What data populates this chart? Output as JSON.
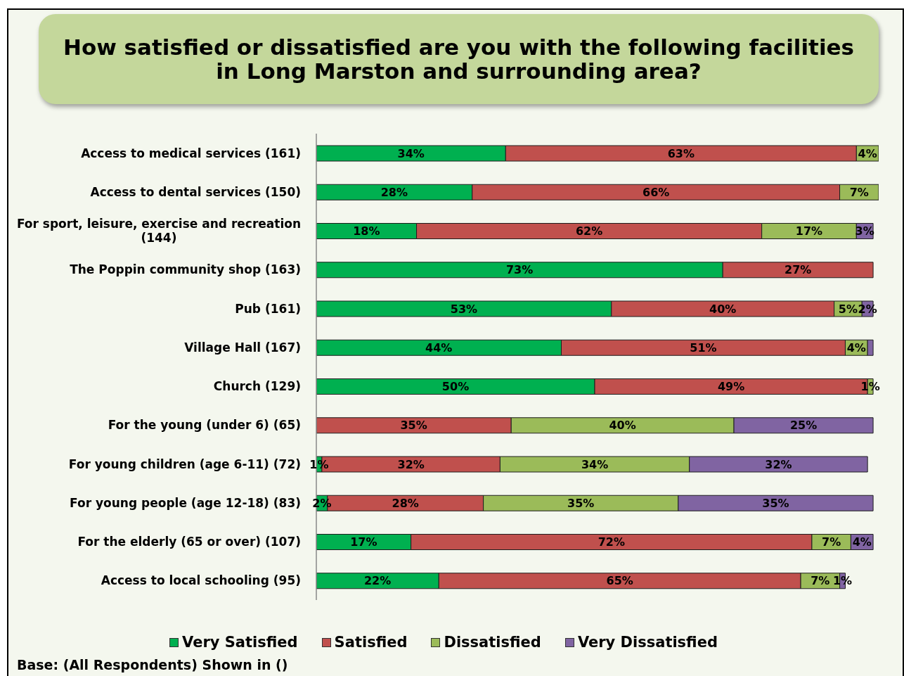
{
  "chart_data": {
    "type": "bar",
    "orientation": "horizontal",
    "stacked": true,
    "title": "How satisfied or dissatisfied are you with the following facilities in Long Marston and surrounding area?",
    "categories": [
      "Access to medical services (161)",
      "Access to dental services (150)",
      "For sport, leisure, exercise and recreation (144)",
      "The Poppin community shop (163)",
      "Pub (161)",
      "Village Hall (167)",
      "Church (129)",
      "For the young (under 6) (65)",
      "For young children (age 6-11) (72)",
      "For young people (age 12-18) (83)",
      "For the elderly (65 or over) (107)",
      "Access to local schooling (95)"
    ],
    "series": [
      {
        "name": "Very Satisfied",
        "color": "#00b050",
        "values": [
          34,
          28,
          18,
          73,
          53,
          44,
          50,
          null,
          1,
          2,
          17,
          22
        ],
        "value_labels": [
          "34%",
          "28%",
          "18%",
          "73%",
          "53%",
          "44%",
          "50%",
          null,
          "1%",
          "2%",
          "17%",
          "22%"
        ]
      },
      {
        "name": "Satisfied",
        "color": "#c0504d",
        "values": [
          63,
          66,
          62,
          27,
          40,
          51,
          49,
          35,
          32,
          28,
          72,
          65
        ],
        "value_labels": [
          "63%",
          "66%",
          "62%",
          "27%",
          "40%",
          "51%",
          "49%",
          "35%",
          "32%",
          "28%",
          "72%",
          "65%"
        ]
      },
      {
        "name": "Dissatisfied",
        "color": "#9bbb59",
        "values": [
          4,
          7,
          17,
          null,
          5,
          4,
          1,
          40,
          34,
          35,
          7,
          7
        ],
        "value_labels": [
          "4%",
          "7%",
          "17%",
          null,
          "5%",
          "4%",
          "1%",
          "40%",
          "34%",
          "35%",
          "7%",
          "7%"
        ]
      },
      {
        "name": "Very Dissatisfied",
        "color": "#8064a2",
        "values": [
          null,
          null,
          3,
          null,
          2,
          1,
          null,
          25,
          32,
          35,
          4,
          1
        ],
        "value_labels": [
          null,
          null,
          "3%",
          null,
          "2%",
          null,
          null,
          "25%",
          "32%",
          "35%",
          "4%",
          "1%"
        ]
      }
    ],
    "legend": "bottom",
    "tick_labels": "y",
    "annotations": [
      "Base: (All Respondents) Shown in ()"
    ]
  }
}
